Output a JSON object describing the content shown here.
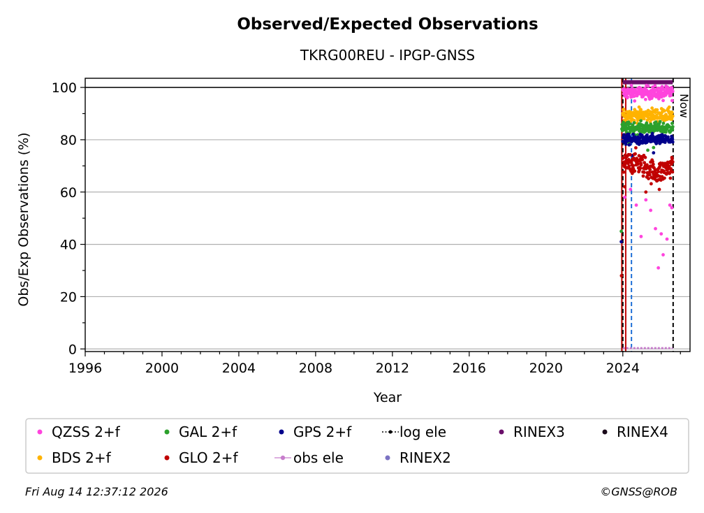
{
  "chart_data": {
    "type": "scatter",
    "title": "Observed/Expected Observations",
    "subtitle": "TKRG00REU - IPGP-GNSS",
    "xlabel": "Year",
    "ylabel": "Obs/Exp Observations (%)",
    "xlim": [
      1996,
      2027.5
    ],
    "ylim": [
      -1,
      103.5
    ],
    "x_ticks": [
      1996,
      2000,
      2004,
      2008,
      2012,
      2016,
      2020,
      2024
    ],
    "y_ticks": [
      0,
      20,
      40,
      60,
      80,
      100
    ],
    "grid": "horizontal",
    "reference_line": 100,
    "now_label": "Now",
    "now_x": 2026.62,
    "legend_position": "bottom",
    "series": [
      {
        "name": "QZSS 2+f",
        "color": "#ff44dd",
        "start": 2024.0,
        "end": 2026.6,
        "mean": 98,
        "spread": 2.5,
        "outliers": [
          [
            2024.1,
            58
          ],
          [
            2024.4,
            61
          ],
          [
            2024.7,
            55
          ],
          [
            2024.95,
            43
          ],
          [
            2025.2,
            57
          ],
          [
            2025.45,
            53
          ],
          [
            2025.7,
            46
          ],
          [
            2025.85,
            31
          ],
          [
            2026.0,
            44
          ],
          [
            2026.1,
            36
          ],
          [
            2026.3,
            42
          ],
          [
            2026.45,
            55
          ],
          [
            2026.55,
            54
          ],
          [
            2026.1,
            95
          ]
        ]
      },
      {
        "name": "BDS 2+f",
        "color": "#ffb300",
        "start": 2024.0,
        "end": 2026.6,
        "mean": 89.5,
        "spread": 2.5,
        "outliers": []
      },
      {
        "name": "GAL 2+f",
        "color": "#2ca02c",
        "start": 2023.95,
        "end": 2026.6,
        "mean": 84.5,
        "spread": 2.2,
        "outliers": [
          [
            2023.92,
            45
          ],
          [
            2024.3,
            79
          ],
          [
            2025.3,
            76
          ],
          [
            2025.6,
            77
          ]
        ]
      },
      {
        "name": "GLO 2+f",
        "color": "#c00000",
        "start": 2024.0,
        "end": 2026.6,
        "mean": 69.5,
        "spread": 4.5,
        "outliers": [
          [
            2023.93,
            28
          ],
          [
            2024.1,
            62
          ],
          [
            2025.2,
            60
          ],
          [
            2025.9,
            61
          ]
        ]
      },
      {
        "name": "GPS 2+f",
        "color": "#00008b",
        "start": 2024.0,
        "end": 2026.6,
        "mean": 80,
        "spread": 2,
        "outliers": [
          [
            2023.92,
            41
          ],
          [
            2024.2,
            72
          ],
          [
            2024.5,
            74
          ],
          [
            2025.6,
            75
          ]
        ]
      },
      {
        "name": "obs ele",
        "color": "#c77dcc",
        "start": 2024.0,
        "end": 2026.6,
        "value": 0.3
      },
      {
        "name": "log ele",
        "color": "#000000"
      },
      {
        "name": "RINEX2",
        "color": "#7b72c3"
      },
      {
        "name": "RINEX3",
        "color": "#6a0f6a",
        "start": 2024.0,
        "end": 2026.6,
        "value": 102
      },
      {
        "name": "RINEX4",
        "color": "#1a0a1a"
      }
    ],
    "vertical_lines": [
      {
        "x": 2023.95,
        "color": "#2ca02c",
        "style": "solid"
      },
      {
        "x": 2023.95,
        "color": "#c00000",
        "style": "solid"
      },
      {
        "x": 2024.0,
        "color": "#000000",
        "style": "dashed"
      },
      {
        "x": 2024.15,
        "color": "#c00000",
        "style": "solid"
      },
      {
        "x": 2024.45,
        "color": "#1f6fd6",
        "style": "dashed"
      },
      {
        "x": 2026.62,
        "color": "#000000",
        "style": "dashed"
      }
    ]
  },
  "legend": {
    "items": [
      {
        "label": "QZSS 2+f",
        "color": "#ff44dd",
        "marker": "dot"
      },
      {
        "label": "GAL 2+f",
        "color": "#2ca02c",
        "marker": "dot"
      },
      {
        "label": "GPS 2+f",
        "color": "#00008b",
        "marker": "dot"
      },
      {
        "label": "log ele",
        "color": "#000000",
        "marker": "dotted-line"
      },
      {
        "label": "RINEX3",
        "color": "#6a0f6a",
        "marker": "dot"
      },
      {
        "label": "RINEX4",
        "color": "#1a0a1a",
        "marker": "dot"
      },
      {
        "label": "BDS 2+f",
        "color": "#ffb300",
        "marker": "dot"
      },
      {
        "label": "GLO 2+f",
        "color": "#c00000",
        "marker": "dot"
      },
      {
        "label": "obs ele",
        "color": "#c77dcc",
        "marker": "line-dot"
      },
      {
        "label": "RINEX2",
        "color": "#7b72c3",
        "marker": "dot"
      }
    ]
  },
  "footer": {
    "date": "Fri Aug 14 12:37:12 2026",
    "credit": "©GNSS@ROB"
  }
}
